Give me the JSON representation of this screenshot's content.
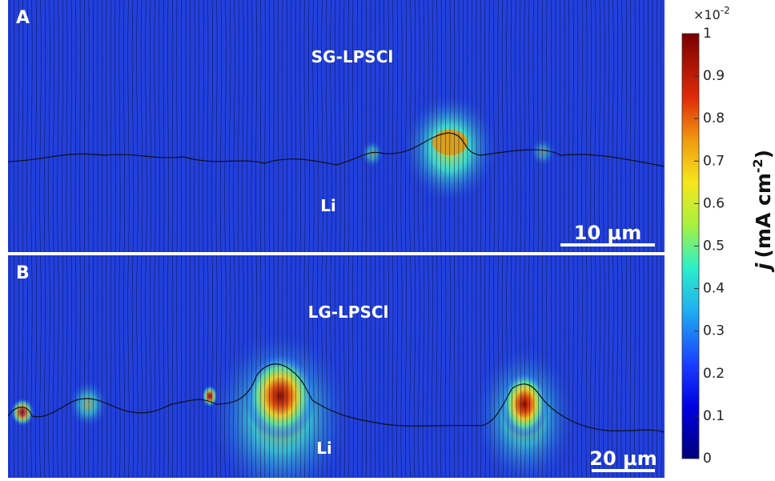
{
  "panels": [
    {
      "label": "A",
      "material": "SG-LPSCl",
      "substrate": "Li",
      "scale_bar": "10 μm"
    },
    {
      "label": "B",
      "material": "LG-LPSCl",
      "substrate": "Li",
      "scale_bar": "20 μm"
    }
  ],
  "colorbar": {
    "multiplier": "×10",
    "exponent": "-2",
    "ylim": [
      0,
      1
    ],
    "yticks": [
      0,
      0.1,
      0.2,
      0.3,
      0.4,
      0.5,
      0.6,
      0.7,
      0.8,
      0.9,
      1
    ],
    "label": {
      "symbol": "j",
      "unit": "(mA cm",
      "unit_exponent": "-2",
      "close": ")"
    }
  }
}
